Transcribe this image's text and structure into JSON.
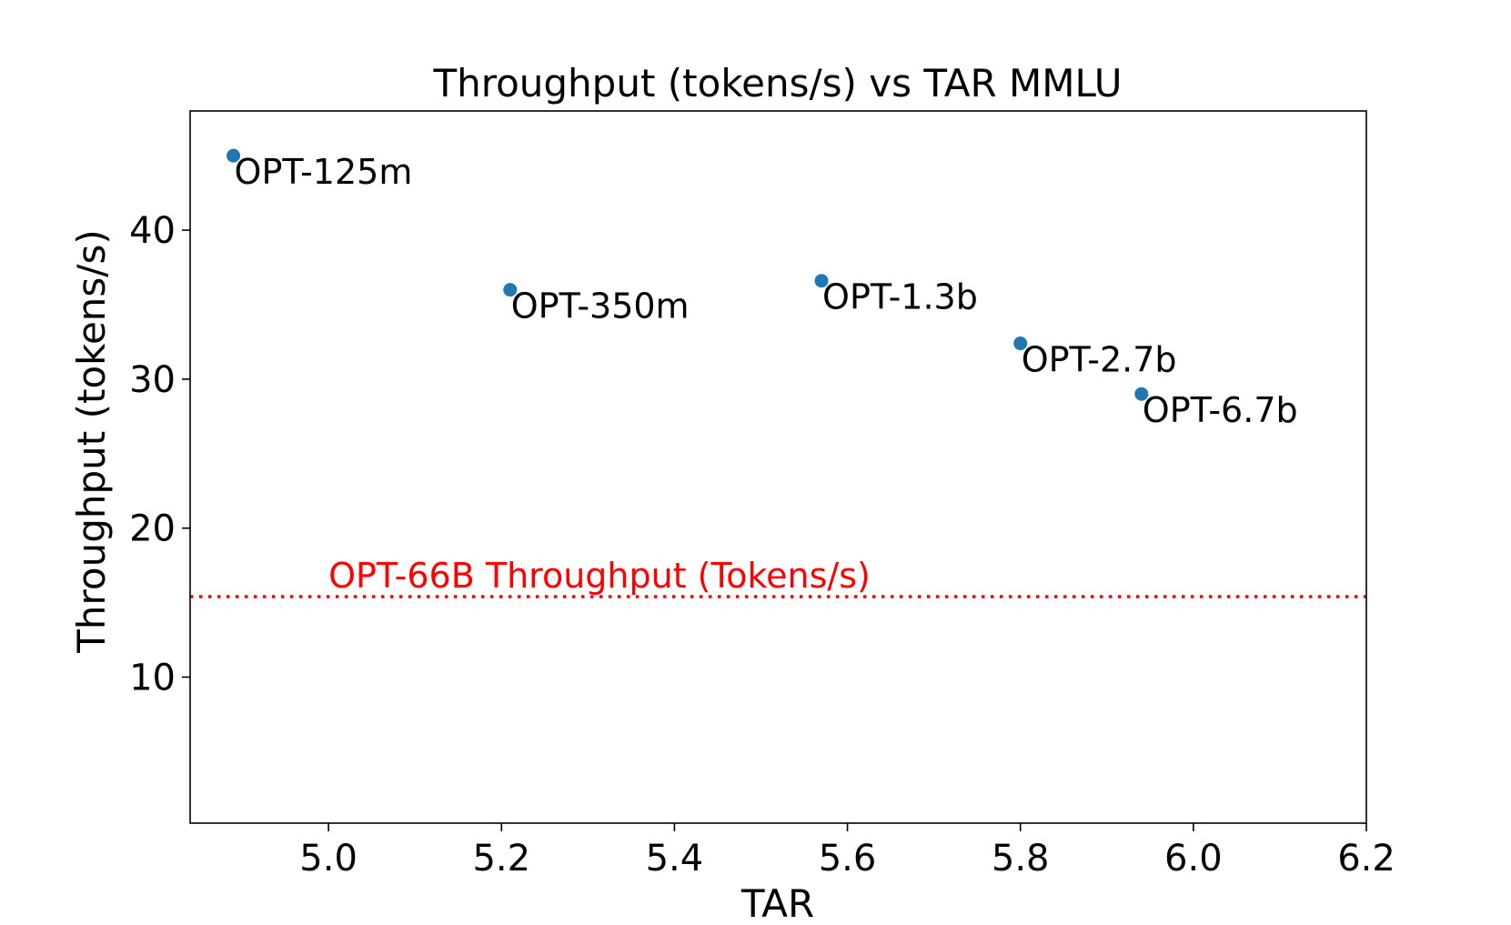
{
  "chart_data": {
    "type": "scatter",
    "title": "Throughput (tokens/s) vs TAR MMLU",
    "xlabel": "TAR",
    "ylabel": "Throughput (tokens/s)",
    "xlim": [
      4.84,
      6.2
    ],
    "ylim": [
      0.2,
      48
    ],
    "xticks": [
      5.0,
      5.2,
      5.4,
      5.6,
      5.8,
      6.0,
      6.2
    ],
    "xtick_labels": [
      "5.0",
      "5.2",
      "5.4",
      "5.6",
      "5.8",
      "6.0",
      "6.2"
    ],
    "yticks": [
      10,
      20,
      30,
      40
    ],
    "ytick_labels": [
      "10",
      "20",
      "30",
      "40"
    ],
    "grid": false,
    "marker_color": "#1f77b4",
    "points": [
      {
        "x": 4.89,
        "y": 45.0,
        "label": "OPT-125m"
      },
      {
        "x": 5.21,
        "y": 36.0,
        "label": "OPT-350m"
      },
      {
        "x": 5.57,
        "y": 36.6,
        "label": "OPT-1.3b"
      },
      {
        "x": 5.8,
        "y": 32.4,
        "label": "OPT-2.7b"
      },
      {
        "x": 5.94,
        "y": 29.0,
        "label": "OPT-6.7b"
      }
    ],
    "reference_line": {
      "y": 15.4,
      "label": "OPT-66B Throughput (Tokens/s)",
      "label_x": 5.0,
      "color": "#ff0000",
      "style": "dotted"
    }
  }
}
